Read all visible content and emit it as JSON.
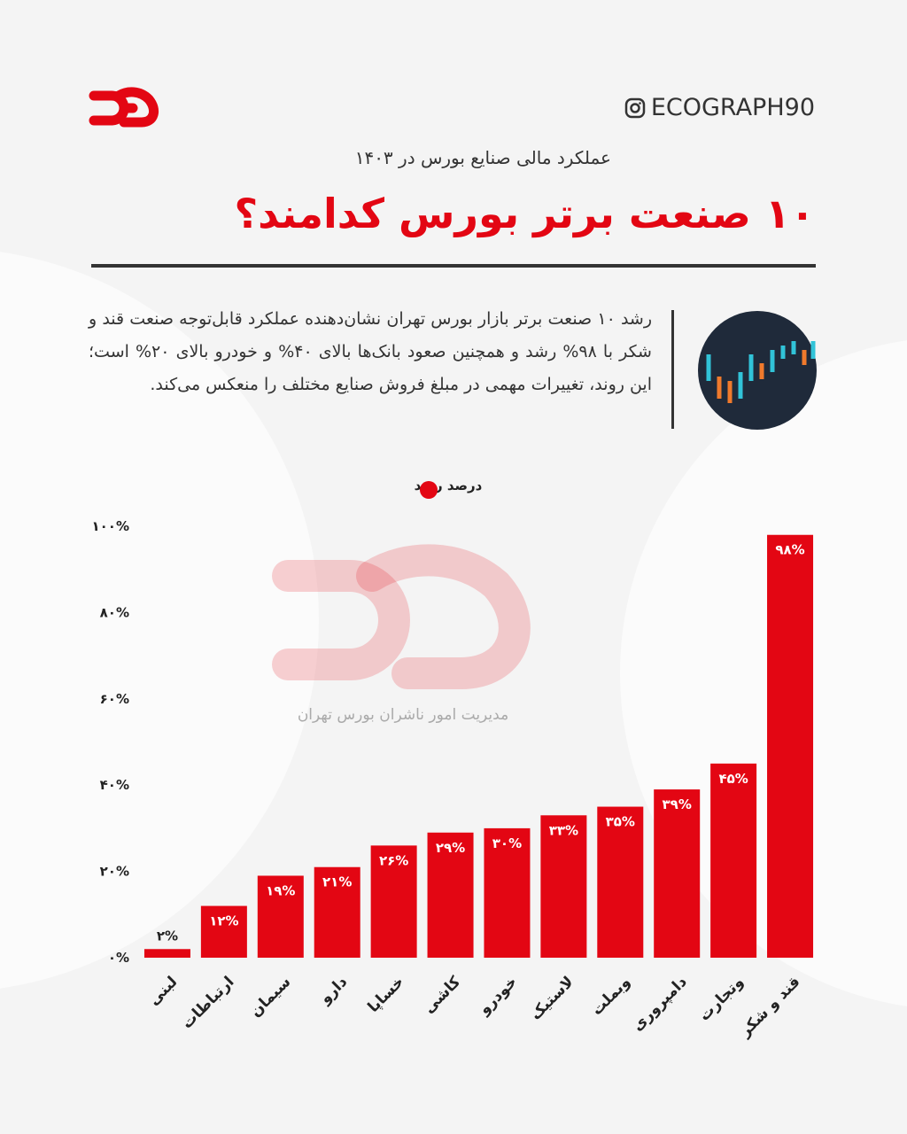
{
  "header": {
    "handle": "ECOGRAPH90",
    "subtitle": "عملکرد مالی صنایع بورس در ۱۴۰۳",
    "title": "۱۰ صنعت برتر بورس کدامند؟",
    "description": "رشد ۱۰ صنعت برتر بازار بورس تهران نشان‌دهنده عملکرد قابل‌توجه صنعت قند و شکر با ۹۸% رشد و همچنین صعود بانک‌ها بالای ۴۰% و خودرو بالای ۲۰% است؛ این روند، تغییرات مهمی در مبلغ فروش صنایع مختلف را منعکس می‌کند."
  },
  "chart_data": {
    "type": "bar",
    "source": "مدیریت امور ناشران بورس تهران",
    "categories": [
      "لبنی",
      "ارتباطات",
      "سیمان",
      "دارو",
      "خساپا",
      "کاشی",
      "خودرو",
      "لاستیک",
      "وبملت",
      "دامپروری",
      "وتجارت",
      "قند و شکر"
    ],
    "series": [
      {
        "name": "درصد رشد",
        "color": "#e30613",
        "values": [
          2,
          12,
          19,
          21,
          26,
          29,
          30,
          33,
          35,
          39,
          45,
          98
        ],
        "value_labels": [
          "۲%",
          "۱۲%",
          "۱۹%",
          "۲۱%",
          "۲۶%",
          "۲۹%",
          "۳۰%",
          "۳۳%",
          "۳۵%",
          "۳۹%",
          "۴۵%",
          "۹۸%"
        ]
      }
    ],
    "ylim": [
      0,
      100
    ],
    "yticks": [
      {
        "value": 0,
        "label": "۰%"
      },
      {
        "value": 20,
        "label": "۲۰%"
      },
      {
        "value": 40,
        "label": "۴۰%"
      },
      {
        "value": 60,
        "label": "۶۰%"
      },
      {
        "value": 80,
        "label": "۸۰%"
      },
      {
        "value": 100,
        "label": "۱۰۰%"
      }
    ],
    "grid": false
  }
}
